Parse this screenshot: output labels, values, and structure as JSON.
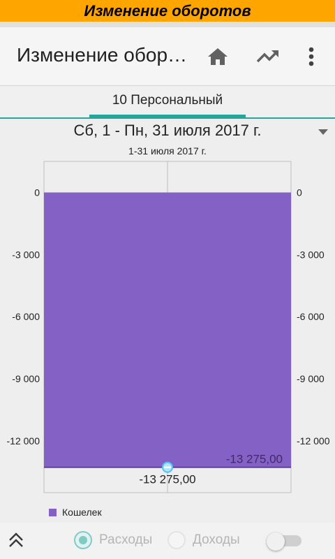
{
  "banner": {
    "title": "Изменение оборотов"
  },
  "toolbar": {
    "title": "Изменение оборотов",
    "icons": {
      "home": "home-icon",
      "trend": "trending-up-icon",
      "more": "more-vert-icon"
    }
  },
  "tabs": [
    {
      "label": "10 Персональный",
      "active": true
    }
  ],
  "period": {
    "label": "Сб, 1 - Пн, 31 июля 2017 г."
  },
  "chart_data": {
    "type": "bar",
    "title": "1-31 июля 2017 г.",
    "categories": [
      ""
    ],
    "series": [
      {
        "name": "Кошелек",
        "values": [
          -13275
        ],
        "color": "#8461c5"
      }
    ],
    "value_label": "-13 275,00",
    "point_label": "-13 275,00",
    "ylim": [
      -14500,
      1500
    ],
    "yticks": [
      0,
      -3000,
      -6000,
      -9000,
      -12000
    ],
    "ytick_labels": [
      "0",
      "-3 000",
      "-6 000",
      "-9 000",
      "-12 000"
    ],
    "grid": false,
    "legend": "bottom-left"
  },
  "footer": {
    "expenses_label": "Расходы",
    "income_label": "Доходы",
    "selected": "expenses",
    "switch_on": false
  },
  "colors": {
    "accent": "#ffa500",
    "teal": "#26a69a",
    "bar": "#8461c5"
  }
}
